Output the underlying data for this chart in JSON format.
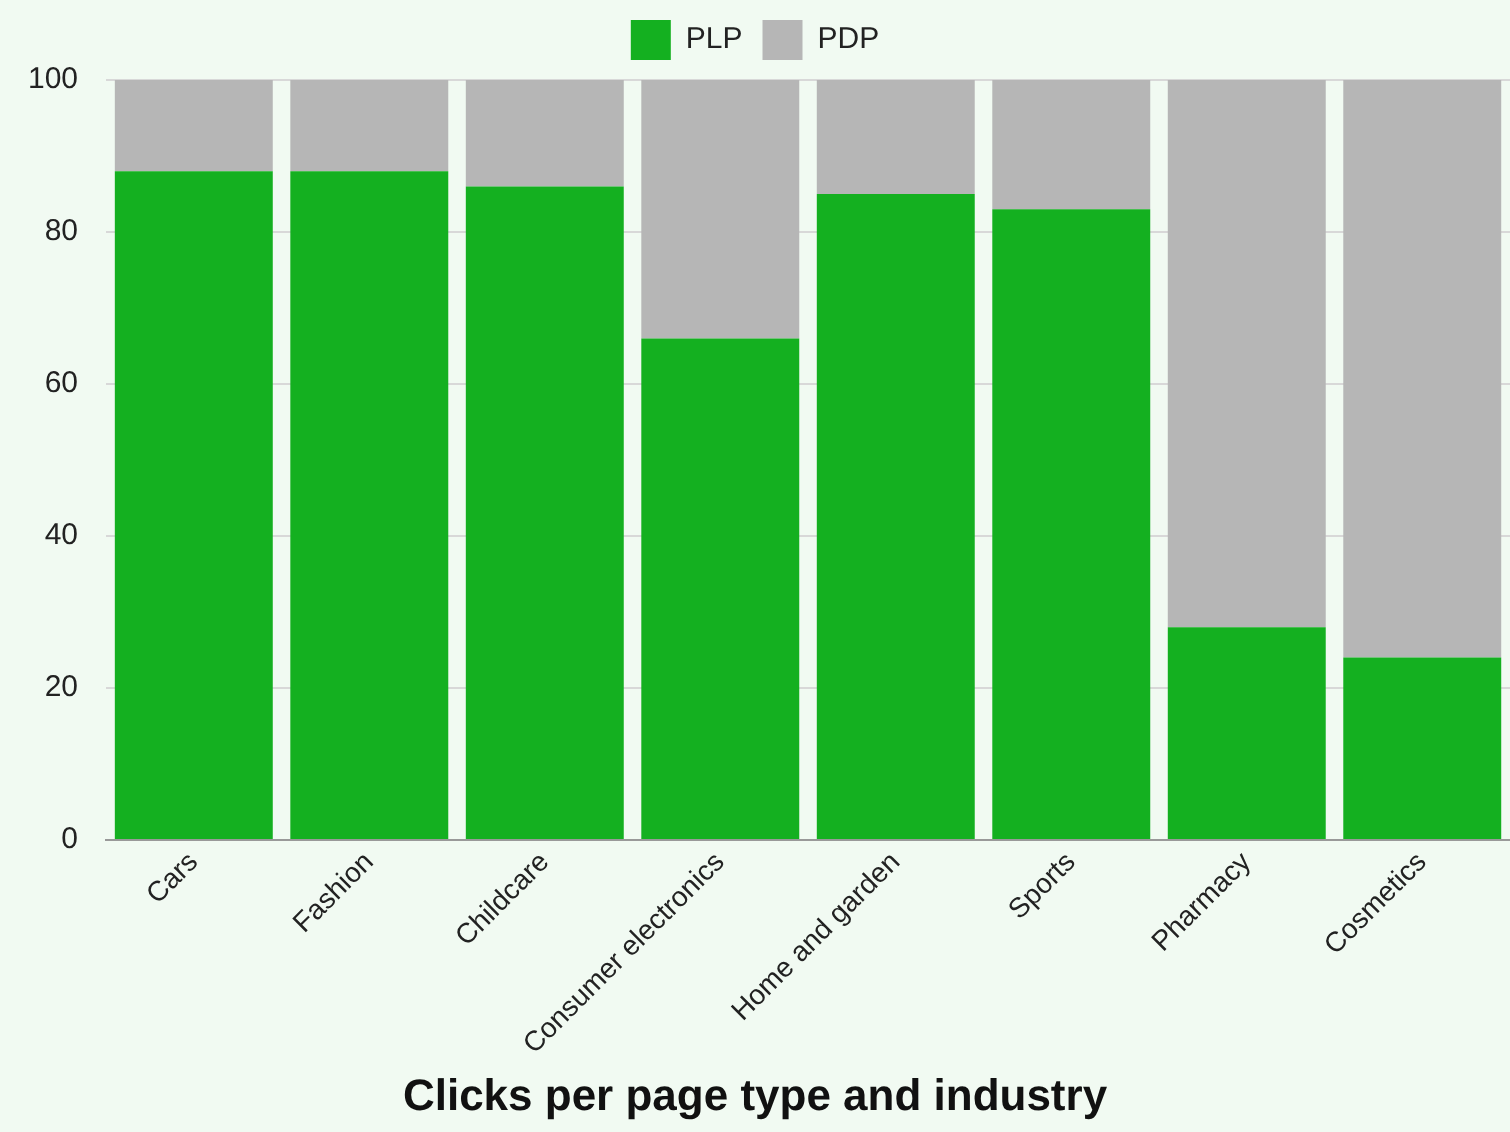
{
  "chart_data": {
    "type": "bar",
    "title": "Clicks per page type and industry",
    "categories": [
      "Cars",
      "Fashion",
      "Childcare",
      "Consumer electronics",
      "Home and garden",
      "Sports",
      "Pharmacy",
      "Cosmetics"
    ],
    "series": [
      {
        "name": "PLP",
        "color": "#14b020",
        "values": [
          88,
          88,
          86,
          66,
          85,
          83,
          28,
          24
        ]
      },
      {
        "name": "PDP",
        "color": "#b6b6b6",
        "values": [
          12,
          12,
          14,
          34,
          15,
          17,
          72,
          76
        ]
      }
    ],
    "stacked": true,
    "ylim": [
      0,
      100
    ],
    "yticks": [
      0,
      20,
      40,
      60,
      80,
      100
    ],
    "grid": "y",
    "legend": "top"
  }
}
